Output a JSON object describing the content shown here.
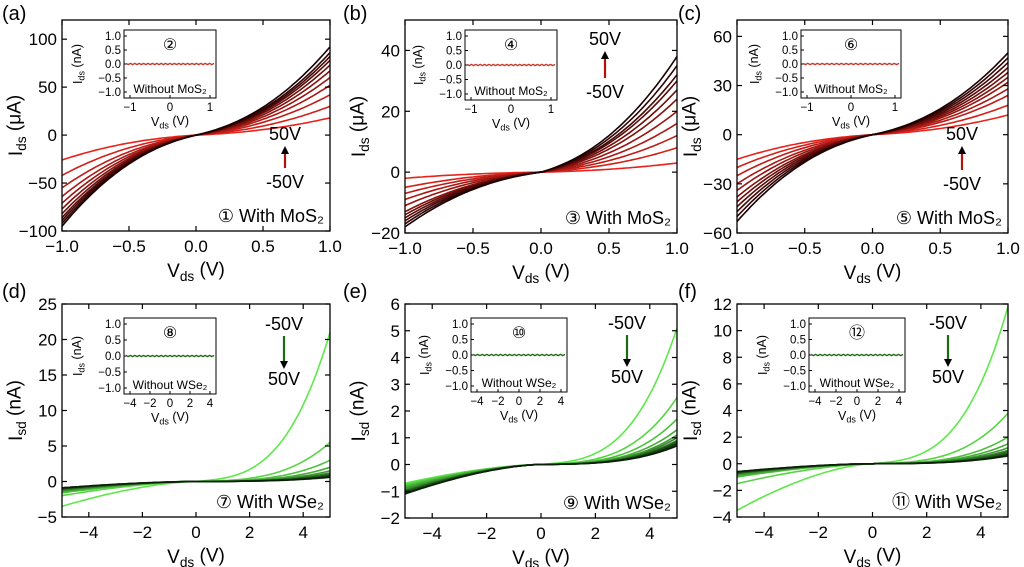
{
  "colors": {
    "red_low": "#e8231c",
    "red_high": "#1a0000",
    "green_low": "#5ee84a",
    "green_high": "#0a1f08",
    "inset_noise": "#c0392b"
  },
  "chart_data": [
    {
      "type": "line",
      "panel_label": "(a)",
      "xlabel": "V_ds (V)",
      "ylabel": "I_ds (μA)",
      "xlim": [
        -1.0,
        1.0
      ],
      "ylim": [
        -100,
        120
      ],
      "xticks": [
        -1.0,
        -0.5,
        0.0,
        0.5,
        1.0
      ],
      "xtick_labels": [
        "−1.0",
        "−0.5",
        "0.0",
        "0.5",
        "1.0"
      ],
      "yticks": [
        -100,
        -50,
        0,
        50,
        100
      ],
      "ytick_labels": [
        "−100",
        "−50",
        "0",
        "50",
        "100"
      ],
      "gate_voltages": [
        -50,
        -40,
        -30,
        -20,
        -10,
        0,
        10,
        20,
        30,
        40,
        50
      ],
      "curve_end_values_pos": [
        18,
        30,
        42,
        52,
        60,
        67,
        73,
        78,
        82,
        86,
        92
      ],
      "curve_end_values_neg": [
        -26,
        -42,
        -55,
        -64,
        -71,
        -77,
        -82,
        -86,
        -89,
        -92,
        -95
      ],
      "annotation": {
        "top": "50V",
        "bottom": "-50V",
        "marker": "①",
        "text": "With MoS₂"
      },
      "inset": {
        "marker": "②",
        "text": "Without MoS₂",
        "ylabel": "I_ds (nA)",
        "xlabel": "V_ds (V)",
        "xticks": [
          "−1",
          "0",
          "1"
        ],
        "yticks": [
          "1.0",
          "0.5",
          "0.0",
          "−0.5",
          "−1.0"
        ]
      }
    },
    {
      "type": "line",
      "panel_label": "(b)",
      "xlabel": "V_ds (V)",
      "ylabel": "I_ds (μA)",
      "xlim": [
        -1.0,
        1.0
      ],
      "ylim": [
        -20,
        50
      ],
      "xticks": [
        -1.0,
        -0.5,
        0.0,
        0.5,
        1.0
      ],
      "xtick_labels": [
        "−1.0",
        "−0.5",
        "0.0",
        "0.5",
        "1.0"
      ],
      "yticks": [
        -20,
        0,
        20,
        40
      ],
      "ytick_labels": [
        "−20",
        "0",
        "20",
        "40"
      ],
      "gate_voltages": [
        -50,
        -40,
        -30,
        -20,
        -10,
        0,
        10,
        20,
        30,
        40,
        50
      ],
      "curve_end_values_pos": [
        3,
        8,
        12,
        16,
        20,
        24,
        27,
        30,
        32,
        35,
        38
      ],
      "curve_end_values_neg": [
        -2,
        -5,
        -7,
        -9,
        -11,
        -13,
        -14,
        -15,
        -16,
        -17,
        -18
      ],
      "annotation": {
        "top": "50V",
        "bottom": "-50V",
        "marker": "③",
        "text": "With MoS₂"
      },
      "inset": {
        "marker": "④",
        "text": "Without MoS₂",
        "ylabel": "I_ds (nA)",
        "xlabel": "V_ds (V)",
        "xticks": [
          "−1",
          "0",
          "1"
        ],
        "yticks": [
          "1.0",
          "0.5",
          "0.0",
          "−0.5",
          "−1.0"
        ]
      }
    },
    {
      "type": "line",
      "panel_label": "(c)",
      "xlabel": "V_ds (V)",
      "ylabel": "I_ds (μA)",
      "xlim": [
        -1.0,
        1.0
      ],
      "ylim": [
        -60,
        70
      ],
      "xticks": [
        -1.0,
        -0.5,
        0.0,
        0.5,
        1.0
      ],
      "xtick_labels": [
        "−1.0",
        "−0.5",
        "0.0",
        "0.5",
        "1.0"
      ],
      "yticks": [
        -60,
        -30,
        0,
        30,
        60
      ],
      "ytick_labels": [
        "−60",
        "−30",
        "0",
        "30",
        "60"
      ],
      "gate_voltages": [
        -50,
        -40,
        -30,
        -20,
        -10,
        0,
        10,
        20,
        30,
        40,
        50
      ],
      "curve_end_values_pos": [
        12,
        18,
        24,
        28,
        32,
        35,
        38,
        41,
        44,
        47,
        50
      ],
      "curve_end_values_neg": [
        -15,
        -20,
        -25,
        -30,
        -34,
        -38,
        -41,
        -44,
        -47,
        -50,
        -53
      ],
      "annotation": {
        "top": "50V",
        "bottom": "-50V",
        "marker": "⑤",
        "text": "With MoS₂"
      },
      "inset": {
        "marker": "⑥",
        "text": "Without MoS₂",
        "ylabel": "I_ds (nA)",
        "xlabel": "V_ds (V)",
        "xticks": [
          "−1",
          "0",
          "1"
        ],
        "yticks": [
          "1.0",
          "0.5",
          "0.0",
          "−0.5",
          "−1.0"
        ]
      }
    },
    {
      "type": "line",
      "panel_label": "(d)",
      "xlabel": "V_ds (V)",
      "ylabel": "I_sd (nA)",
      "xlim": [
        -5,
        5
      ],
      "ylim": [
        -5,
        25
      ],
      "xticks": [
        -4,
        -2,
        0,
        2,
        4
      ],
      "xtick_labels": [
        "−4",
        "−2",
        "0",
        "2",
        "4"
      ],
      "yticks": [
        -5,
        0,
        5,
        10,
        15,
        20,
        25
      ],
      "ytick_labels": [
        "−5",
        "0",
        "5",
        "10",
        "15",
        "20",
        "25"
      ],
      "gate_voltages": [
        -50,
        -40,
        -30,
        -20,
        -10,
        0,
        10,
        20,
        30,
        40,
        50
      ],
      "curve_end_values_pos": [
        21,
        5.5,
        3,
        2,
        1.5,
        1.2,
        1.0,
        0.9,
        0.8,
        0.7,
        0.6
      ],
      "curve_end_values_neg": [
        -3.5,
        -2.0,
        -1.6,
        -1.4,
        -1.3,
        -1.2,
        -1.1,
        -1.0,
        -1.0,
        -0.9,
        -0.9
      ],
      "annotation": {
        "top": "-50V",
        "bottom": "50V",
        "marker": "⑦",
        "text": "With WSe₂"
      },
      "inset": {
        "marker": "⑧",
        "text": "Without WSe₂",
        "ylabel": "I_ds (nA)",
        "xlabel": "V_ds (V)",
        "xticks": [
          "−4",
          "−2",
          "0",
          "2",
          "4"
        ],
        "yticks": [
          "1.0",
          "0.5",
          "0.0",
          "−0.5",
          "−1.0"
        ]
      }
    },
    {
      "type": "line",
      "panel_label": "(e)",
      "xlabel": "V_ds (V)",
      "ylabel": "I_sd (nA)",
      "xlim": [
        -5,
        5
      ],
      "ylim": [
        -2,
        6
      ],
      "xticks": [
        -4,
        -2,
        0,
        2,
        4
      ],
      "xtick_labels": [
        "−4",
        "−2",
        "0",
        "2",
        "4"
      ],
      "yticks": [
        -2,
        -1,
        0,
        1,
        2,
        3,
        4,
        5,
        6
      ],
      "ytick_labels": [
        "−2",
        "−1",
        "0",
        "1",
        "2",
        "3",
        "4",
        "5",
        "6"
      ],
      "gate_voltages": [
        -50,
        -40,
        -30,
        -20,
        -10,
        0,
        10,
        20,
        30,
        40,
        50
      ],
      "curve_end_values_pos": [
        5.1,
        2.5,
        1.7,
        1.3,
        1.1,
        1.0,
        0.9,
        0.85,
        0.8,
        0.75,
        0.7
      ],
      "curve_end_values_neg": [
        -0.7,
        -0.75,
        -0.8,
        -0.85,
        -0.9,
        -0.95,
        -1.0,
        -1.0,
        -1.05,
        -1.1,
        -1.1
      ],
      "annotation": {
        "top": "-50V",
        "bottom": "50V",
        "marker": "⑨",
        "text": "With WSe₂"
      },
      "inset": {
        "marker": "⑩",
        "text": "Without WSe₂",
        "ylabel": "I_ds (nA)",
        "xlabel": "V_ds (V)",
        "xticks": [
          "−4",
          "−2",
          "0",
          "2",
          "4"
        ],
        "yticks": [
          "1.0",
          "0.5",
          "0.0",
          "−0.5",
          "−1.0"
        ]
      }
    },
    {
      "type": "line",
      "panel_label": "(f)",
      "xlabel": "V_ds (V)",
      "ylabel": "I_sd (nA)",
      "xlim": [
        -5,
        5
      ],
      "ylim": [
        -4,
        12
      ],
      "xticks": [
        -4,
        -2,
        0,
        2,
        4
      ],
      "xtick_labels": [
        "−4",
        "−2",
        "0",
        "2",
        "4"
      ],
      "yticks": [
        -4,
        -2,
        0,
        2,
        4,
        6,
        8,
        10,
        12
      ],
      "ytick_labels": [
        "−4",
        "−2",
        "0",
        "2",
        "4",
        "6",
        "8",
        "10",
        "12"
      ],
      "gate_voltages": [
        -50,
        -40,
        -30,
        -20,
        -10,
        0,
        10,
        20,
        30,
        40,
        50
      ],
      "curve_end_values_pos": [
        11.8,
        3.8,
        2.0,
        1.5,
        1.2,
        1.0,
        0.9,
        0.8,
        0.7,
        0.65,
        0.6
      ],
      "curve_end_values_neg": [
        -3.5,
        -1.5,
        -1.0,
        -0.9,
        -0.8,
        -0.75,
        -0.7,
        -0.7,
        -0.65,
        -0.6,
        -0.6
      ],
      "annotation": {
        "top": "-50V",
        "bottom": "50V",
        "marker": "⑪",
        "text": "With WSe₂"
      },
      "inset": {
        "marker": "⑫",
        "text": "Without WSe₂",
        "ylabel": "I_ds (nA)",
        "xlabel": "V_ds (V)",
        "xticks": [
          "−4",
          "−2",
          "0",
          "2",
          "4"
        ],
        "yticks": [
          "1.0",
          "0.5",
          "0.0",
          "−0.5",
          "−1.0"
        ]
      }
    }
  ]
}
